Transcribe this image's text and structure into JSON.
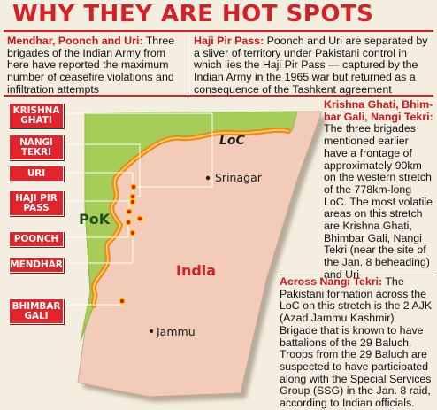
{
  "title": "WHY THEY ARE HOT SPOTS",
  "top_left": {
    "heading": "Mendhar, Poonch and Uri:",
    "body": " Three brigades of the Indian Army from here have reported the maximum number of ceasefire violations and infiltration attempts"
  },
  "top_right": {
    "heading": "Haji Pir Pass:",
    "body": " Poonch and Uri are separated by a sliver of territory under Pakistani control in which lies the Haji Pir Pass — captured by the Indian Army in the 1965 war but returned as a consequence of the Tashkent agreement"
  },
  "side_one": {
    "heading": "Krishna Ghati, Bhim­bar Gali, Nangi Tekri:",
    "body": " The three brigades mentioned earlier have a frontage of approximately 90km on the western stretch of the 778km-long LoC. The most volatile areas on this stretch are Krishna Ghati, Bhimbar Gali, Nangi Tekri (near the site of the Jan. 8 beheading) and Uri"
  },
  "side_two": {
    "heading": "Across Nangi Tekri:",
    "body": " The Pakistani formation across the LoC on this stretch is the 2 AJK (Azad Jammu Kashmir) Brigade that is known to have battalions of the 29 Baluch. Troops from the 29 Baluch are suspected to have participated along with the Special Services Group (SSG) in the Jan. 8 raid, according to Indian officials."
  },
  "callouts": [
    "KRISHNA GHATI",
    "NANGI TEKRI",
    "URI",
    "HAJI PIR PASS",
    "POONCH",
    "MENDHAR",
    "BHIMBAR GALI"
  ],
  "map_labels": {
    "loc": "LoC",
    "pok": "PoK",
    "india": "India",
    "srinagar": "Srinagar",
    "jammu": "Jammu"
  },
  "colors": {
    "accent_red": "#d42027",
    "pok_green": "#a6cd57",
    "india_pink": "#f2ccb8",
    "loc_line": "#f08a1a"
  }
}
